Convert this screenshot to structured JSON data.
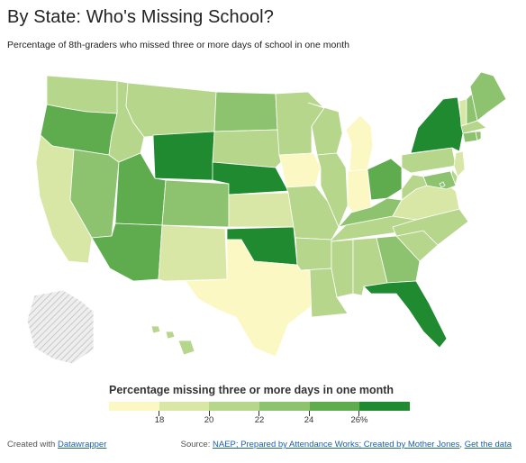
{
  "header": {
    "title": "By State: Who's Missing School?",
    "subtitle": "Percentage of 8th-graders who missed three or more days of school in one month"
  },
  "legend": {
    "title": "Percentage missing three or more days in one month",
    "tick_labels": [
      "18",
      "20",
      "22",
      "24",
      "26%"
    ],
    "thresholds": [
      18,
      20,
      22,
      24,
      26
    ],
    "colors": [
      "#fcf8c4",
      "#d8e7a6",
      "#b6d68c",
      "#8dc36e",
      "#5eac4e",
      "#1f8a2f"
    ]
  },
  "map": {
    "legend_bin_by_state": {
      "WA": 2,
      "OR": 4,
      "CA": 1,
      "NV": 3,
      "ID": 2,
      "MT": 2,
      "WY": 5,
      "UT": 4,
      "AZ": 4,
      "CO": 3,
      "NM": 1,
      "ND": 3,
      "SD": 2,
      "NE": 5,
      "KS": 1,
      "OK": 5,
      "TX": 0,
      "MN": 2,
      "IA": 0,
      "MO": 2,
      "AR": 2,
      "LA": 2,
      "WI": 2,
      "IL": 2,
      "MI": 0,
      "IN": 0,
      "OH": 4,
      "KY": 3,
      "TN": 2,
      "MS": 2,
      "AL": 2,
      "GA": 3,
      "FL": 5,
      "SC": 2,
      "NC": 2,
      "VA": 1,
      "WV": 2,
      "PA": 2,
      "NY": 5,
      "VT": 1,
      "NH": 3,
      "ME": 3,
      "MA": 2,
      "CT": 3,
      "RI": 3,
      "NJ": 1,
      "DE": 2,
      "MD": 3,
      "DC": 3,
      "AK": null,
      "HI": 2
    }
  },
  "footer": {
    "created_prefix": "Created with",
    "created_link": "Datawrapper",
    "source_prefix": "Source:",
    "source_link": "NAEP; Prepared by Attendance Works; Created by Mother Jones",
    "get_data_link": "Get the data",
    "separator": ","
  }
}
